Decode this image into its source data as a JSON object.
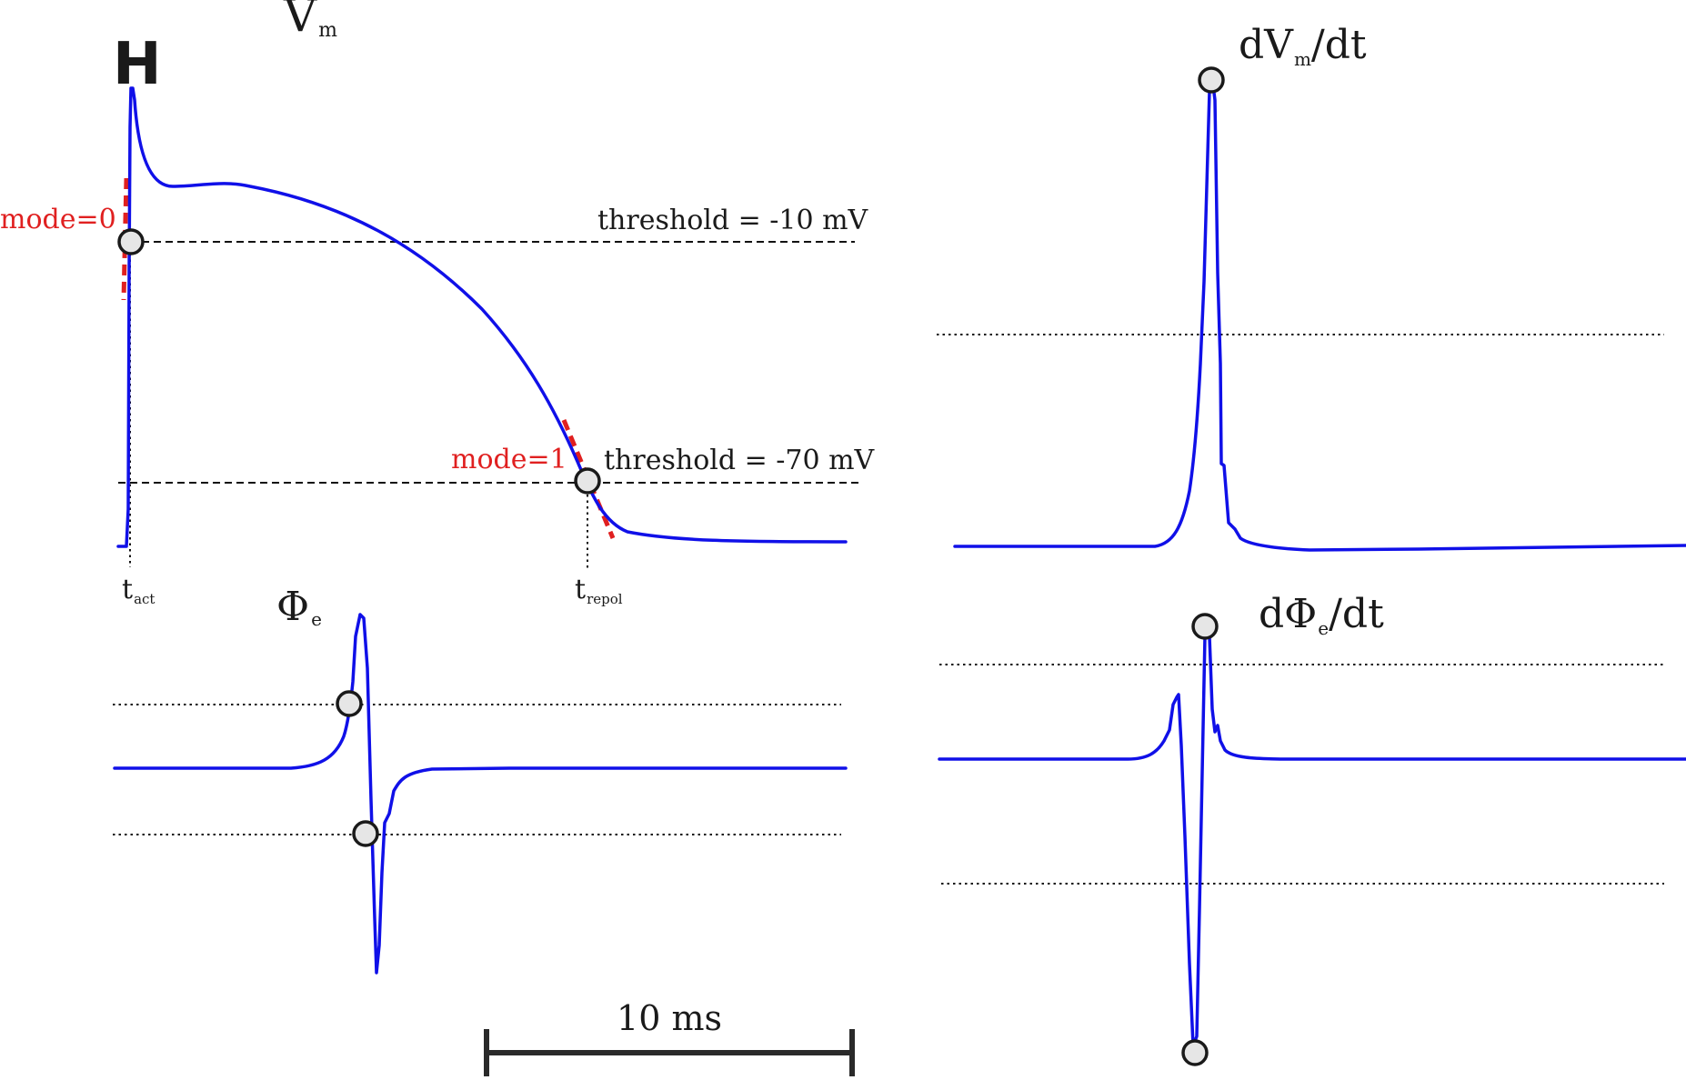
{
  "panels": {
    "vm": {
      "title_main": "V",
      "title_sub": "m",
      "bar_glyph": "H",
      "mode0_label": "mode=0",
      "mode1_label": "mode=1",
      "threshold_high_label": "threshold = -10 mV",
      "threshold_low_label": "threshold = -70 mV",
      "tact_main": "t",
      "tact_sub": "act",
      "trepol_main": "t",
      "trepol_sub": "repol"
    },
    "phie": {
      "title_main": "Φ",
      "title_sub": "e"
    },
    "dvm": {
      "title_pre": "dV",
      "title_sub": "m",
      "title_post": "/dt"
    },
    "dphie": {
      "title_pre": "dΦ",
      "title_sub": "e",
      "title_post": "/dt"
    }
  },
  "scale_bar": {
    "label": "10 ms"
  },
  "colors": {
    "trace": "#1010e8",
    "annotation_red": "#e02020",
    "marker_fill": "#e6e6e6"
  }
}
